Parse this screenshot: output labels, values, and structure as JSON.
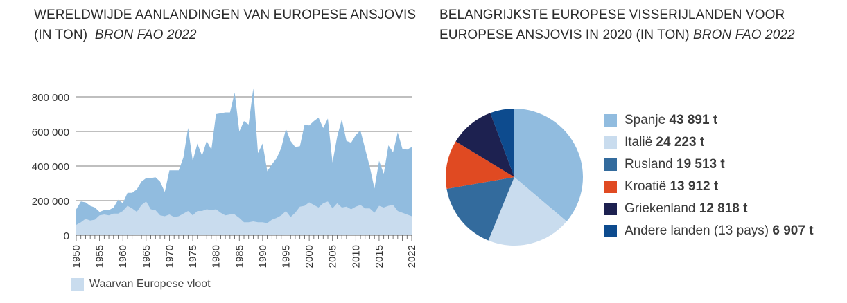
{
  "titles": {
    "left_main": "WERELDWIJDE AANLANDINGEN VAN EUROPESE ANSJOVIS (IN TON)",
    "left_source": "BRON FAO 2022",
    "right_main": "BELANGRIJKSTE EUROPESE VISSERIJLANDEN VOOR EUROPESE ANSJOVIS IN 2020 (IN TON)",
    "right_source": "BRON FAO 2022"
  },
  "bottom_legend": {
    "label": "Waarvan Europese vloot",
    "color": "#c9dcee"
  },
  "chart_data": [
    {
      "type": "area",
      "title": "WERELDWIJDE AANLANDINGEN VAN EUROPESE ANSJOVIS (IN TON)",
      "xlabel": "",
      "ylabel": "",
      "ylim": [
        0,
        800000
      ],
      "yticks": [
        0,
        200000,
        400000,
        600000,
        800000
      ],
      "ytick_labels": [
        "0",
        "200 000",
        "400 000",
        "600 000",
        "800 000"
      ],
      "xticks": [
        1950,
        1955,
        1960,
        1965,
        1970,
        1975,
        1980,
        1985,
        1990,
        1995,
        2000,
        2005,
        2010,
        2015,
        2022
      ],
      "xtick_labels": [
        "1950",
        "1955",
        "1960",
        "1965",
        "1970",
        "1975",
        "1980",
        "1985",
        "1990",
        "1995",
        "2000",
        "2005",
        "2010",
        "2015",
        "2022"
      ],
      "grid": "horizontal",
      "legend": "bottom-left",
      "x": [
        1950,
        1951,
        1952,
        1953,
        1954,
        1955,
        1956,
        1957,
        1958,
        1959,
        1960,
        1961,
        1962,
        1963,
        1964,
        1965,
        1966,
        1967,
        1968,
        1969,
        1970,
        1971,
        1972,
        1973,
        1974,
        1975,
        1976,
        1977,
        1978,
        1979,
        1980,
        1981,
        1982,
        1983,
        1984,
        1985,
        1986,
        1987,
        1988,
        1989,
        1990,
        1991,
        1992,
        1993,
        1994,
        1995,
        1996,
        1997,
        1998,
        1999,
        2000,
        2001,
        2002,
        2003,
        2004,
        2005,
        2006,
        2007,
        2008,
        2009,
        2010,
        2011,
        2012,
        2013,
        2014,
        2015,
        2016,
        2017,
        2018,
        2019,
        2020,
        2021,
        2022
      ],
      "series": [
        {
          "color": "#91bcdf",
          "values": [
            150000,
            195000,
            190000,
            170000,
            160000,
            135000,
            145000,
            145000,
            160000,
            205000,
            185000,
            245000,
            245000,
            265000,
            310000,
            330000,
            330000,
            335000,
            310000,
            250000,
            375000,
            375000,
            375000,
            450000,
            620000,
            430000,
            530000,
            460000,
            545000,
            495000,
            700000,
            705000,
            710000,
            710000,
            825000,
            600000,
            660000,
            640000,
            850000,
            475000,
            530000,
            370000,
            410000,
            445000,
            505000,
            615000,
            545000,
            510000,
            515000,
            640000,
            635000,
            660000,
            680000,
            620000,
            675000,
            420000,
            570000,
            670000,
            545000,
            535000,
            580000,
            605000,
            500000,
            395000,
            270000,
            430000,
            355000,
            520000,
            480000,
            595000,
            500000,
            495000,
            510000
          ]
        },
        {
          "name": "Waarvan Europese vloot",
          "color": "#c9dcee",
          "values": [
            60000,
            75000,
            95000,
            85000,
            90000,
            115000,
            120000,
            115000,
            125000,
            125000,
            140000,
            170000,
            155000,
            135000,
            175000,
            195000,
            150000,
            145000,
            115000,
            110000,
            120000,
            105000,
            110000,
            125000,
            140000,
            115000,
            140000,
            140000,
            150000,
            145000,
            150000,
            130000,
            115000,
            120000,
            120000,
            100000,
            75000,
            75000,
            80000,
            75000,
            75000,
            70000,
            90000,
            100000,
            115000,
            140000,
            105000,
            130000,
            165000,
            170000,
            190000,
            175000,
            160000,
            185000,
            195000,
            155000,
            185000,
            160000,
            165000,
            150000,
            165000,
            175000,
            155000,
            155000,
            130000,
            170000,
            160000,
            170000,
            175000,
            140000,
            130000,
            120000,
            110000
          ]
        }
      ]
    },
    {
      "type": "pie",
      "title": "BELANGRIJKSTE EUROPESE VISSERIJLANDEN VOOR EUROPESE ANSJOVIS IN 2020 (IN TON)",
      "legend": "right",
      "slices": [
        {
          "country": "Spanje",
          "value": 43891,
          "value_label": "43 891 t",
          "color": "#91bcdf"
        },
        {
          "country": "Italië",
          "value": 24223,
          "value_label": "24 223 t",
          "color": "#c9dcee"
        },
        {
          "country": "Rusland",
          "value": 19513,
          "value_label": "19 513 t",
          "color": "#336b9d"
        },
        {
          "country": "Kroatië",
          "value": 13912,
          "value_label": "13 912 t",
          "color": "#e04a22"
        },
        {
          "country": "Griekenland",
          "value": 12818,
          "value_label": "12 818 t",
          "color": "#1d2150"
        },
        {
          "country": "Andere landen (13 pays)",
          "value": 6907,
          "value_label": "6 907 t",
          "color": "#0d4b8e"
        }
      ]
    }
  ]
}
